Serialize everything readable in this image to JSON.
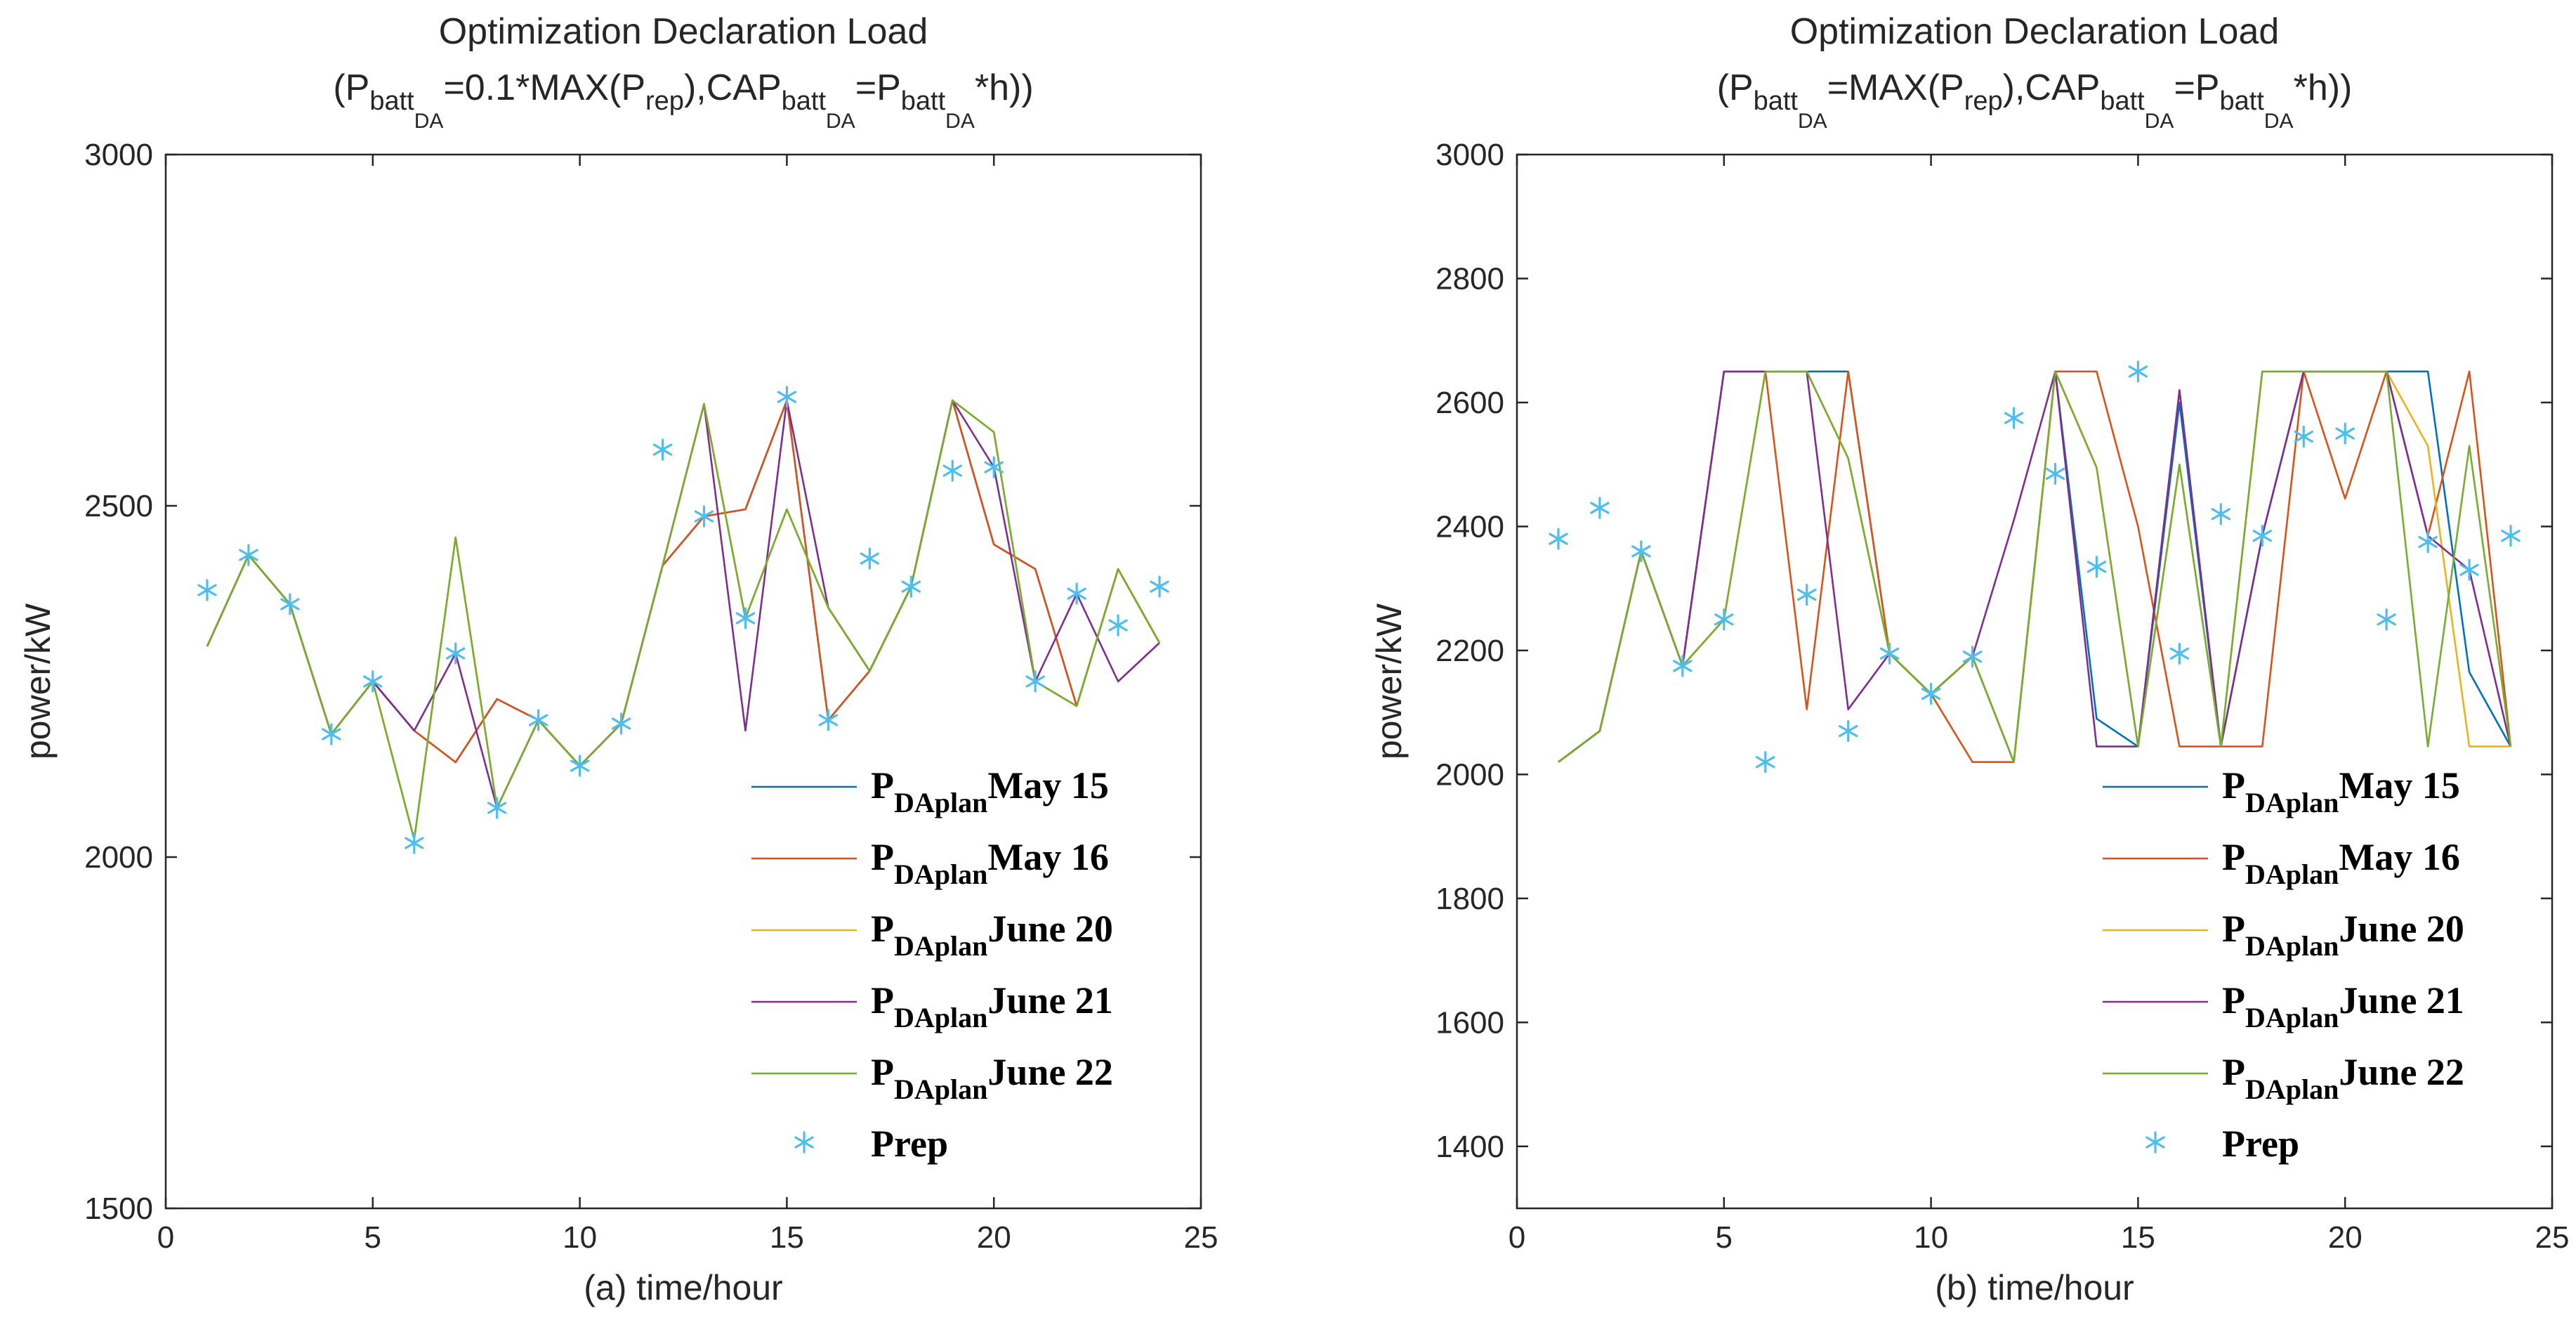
{
  "colors": {
    "may15": "#0072BD",
    "may16": "#D95319",
    "june20": "#EDB120",
    "june21": "#7E2F8E",
    "june22": "#77AC30",
    "prep": "#4DBEEE",
    "axis": "#262626"
  },
  "chart_data": [
    {
      "type": "line",
      "id": "a",
      "title_line1": "Optimization Declaration Load",
      "title_line2": {
        "open": "(P",
        "sub1": "batt",
        "subsub1": "DA",
        "mid1": "=0.1*MAX(P",
        "sub2": "rep",
        "mid2": "),CAP",
        "sub3": "batt",
        "subsub3": "DA",
        "mid3": "=P",
        "sub4": "batt",
        "subsub4": "DA",
        "close": "*h))"
      },
      "xlabel": "(a) time/hour",
      "ylabel": "power/kW",
      "xlim": [
        0,
        25
      ],
      "ylim": [
        1500,
        3000
      ],
      "xticks": [
        "0",
        "5",
        "10",
        "15",
        "20",
        "25"
      ],
      "xtick_values": [
        0,
        5,
        10,
        15,
        20,
        25
      ],
      "yticks": [
        "1500",
        "2000",
        "2500",
        "3000"
      ],
      "ytick_values": [
        1500,
        2000,
        2500,
        3000
      ],
      "x": [
        1,
        2,
        3,
        4,
        5,
        6,
        7,
        8,
        9,
        10,
        11,
        12,
        13,
        14,
        15,
        16,
        17,
        18,
        19,
        20,
        21,
        22,
        23,
        24
      ],
      "series": [
        {
          "key": "may15",
          "name_p": "P",
          "name_sub": "DAplan",
          "name_rest": "May 15",
          "values": [
            2300,
            2430,
            2360,
            2175,
            2250,
            2180,
            2135,
            2225,
            2195,
            2130,
            2190,
            2415,
            2485,
            2495,
            2650,
            2195,
            2265,
            2385,
            2650,
            2445,
            2410,
            2215,
            2410,
            2305
          ]
        },
        {
          "key": "may16",
          "name_p": "P",
          "name_sub": "DAplan",
          "name_rest": "May 16",
          "values": [
            2300,
            2430,
            2360,
            2175,
            2250,
            2180,
            2135,
            2225,
            2195,
            2130,
            2190,
            2415,
            2485,
            2495,
            2650,
            2195,
            2265,
            2385,
            2650,
            2445,
            2410,
            2215,
            2410,
            2305
          ]
        },
        {
          "key": "june20",
          "name_p": "P",
          "name_sub": "DAplan",
          "name_rest": "June 20",
          "values": [
            2300,
            2430,
            2360,
            2175,
            2250,
            2025,
            2455,
            2070,
            2195,
            2130,
            2190,
            2415,
            2645,
            2340,
            2495,
            2355,
            2265,
            2385,
            2650,
            2605,
            2250,
            2215,
            2410,
            2305
          ]
        },
        {
          "key": "june21",
          "name_p": "P",
          "name_sub": "DAplan",
          "name_rest": "June 21",
          "values": [
            2300,
            2430,
            2360,
            2175,
            2250,
            2180,
            2290,
            2070,
            2195,
            2130,
            2190,
            2415,
            2645,
            2180,
            2650,
            2355,
            2265,
            2385,
            2650,
            2555,
            2250,
            2375,
            2250,
            2305
          ]
        },
        {
          "key": "june22",
          "name_p": "P",
          "name_sub": "DAplan",
          "name_rest": "June 22",
          "values": [
            2300,
            2430,
            2360,
            2175,
            2250,
            2025,
            2455,
            2070,
            2195,
            2130,
            2190,
            2415,
            2645,
            2340,
            2495,
            2355,
            2265,
            2385,
            2650,
            2605,
            2250,
            2215,
            2410,
            2305
          ]
        }
      ],
      "prep": {
        "name": "Prep",
        "values": [
          2380,
          2430,
          2360,
          2175,
          2250,
          2020,
          2290,
          2070,
          2195,
          2130,
          2190,
          2580,
          2485,
          2340,
          2655,
          2195,
          2425,
          2385,
          2550,
          2555,
          2250,
          2375,
          2330,
          2385
        ]
      },
      "legend_location": "bottom-right"
    },
    {
      "type": "line",
      "id": "b",
      "title_line1": "Optimization Declaration Load",
      "title_line2": {
        "open": "(P",
        "sub1": "batt",
        "subsub1": "DA",
        "mid1": "=MAX(P",
        "sub2": "rep",
        "mid2": "),CAP",
        "sub3": "batt",
        "subsub3": "DA",
        "mid3": "=P",
        "sub4": "batt",
        "subsub4": "DA",
        "close": "*h))"
      },
      "xlabel": "(b) time/hour",
      "ylabel": "power/kW",
      "xlim": [
        0,
        25
      ],
      "ylim": [
        1300,
        3000
      ],
      "xticks": [
        "0",
        "5",
        "10",
        "15",
        "20",
        "25"
      ],
      "xtick_values": [
        0,
        5,
        10,
        15,
        20,
        25
      ],
      "yticks": [
        "1400",
        "1600",
        "1800",
        "2000",
        "2200",
        "2400",
        "2600",
        "2800",
        "3000"
      ],
      "ytick_values": [
        1400,
        1600,
        1800,
        2000,
        2200,
        2400,
        2600,
        2800,
        3000
      ],
      "x": [
        1,
        2,
        3,
        4,
        5,
        6,
        7,
        8,
        9,
        10,
        11,
        12,
        13,
        14,
        15,
        16,
        17,
        18,
        19,
        20,
        21,
        22,
        23,
        24
      ],
      "series": [
        {
          "key": "may15",
          "name_p": "P",
          "name_sub": "DAplan",
          "name_rest": "May 15",
          "values": [
            2020,
            2070,
            2360,
            2175,
            2650,
            2650,
            2650,
            2650,
            2195,
            2130,
            2190,
            2020,
            2650,
            2090,
            2045,
            2600,
            2045,
            2385,
            2650,
            2650,
            2650,
            2650,
            2165,
            2045
          ]
        },
        {
          "key": "may16",
          "name_p": "P",
          "name_sub": "DAplan",
          "name_rest": "May 16",
          "values": [
            2020,
            2070,
            2360,
            2175,
            2650,
            2650,
            2105,
            2650,
            2195,
            2130,
            2020,
            2020,
            2650,
            2650,
            2400,
            2045,
            2045,
            2045,
            2650,
            2445,
            2650,
            2385,
            2650,
            2045
          ]
        },
        {
          "key": "june20",
          "name_p": "P",
          "name_sub": "DAplan",
          "name_rest": "June 20",
          "values": [
            2020,
            2070,
            2360,
            2175,
            2250,
            2650,
            2650,
            2510,
            2195,
            2130,
            2190,
            2020,
            2650,
            2495,
            2045,
            2500,
            2045,
            2650,
            2650,
            2650,
            2650,
            2530,
            2045,
            2045
          ]
        },
        {
          "key": "june21",
          "name_p": "P",
          "name_sub": "DAplan",
          "name_rest": "June 21",
          "values": [
            2020,
            2070,
            2360,
            2175,
            2650,
            2650,
            2650,
            2105,
            2195,
            2130,
            2190,
            2410,
            2650,
            2045,
            2045,
            2620,
            2045,
            2385,
            2650,
            2650,
            2650,
            2385,
            2330,
            2045
          ]
        },
        {
          "key": "june22",
          "name_p": "P",
          "name_sub": "DAplan",
          "name_rest": "June 22",
          "values": [
            2020,
            2070,
            2360,
            2175,
            2250,
            2650,
            2650,
            2510,
            2195,
            2130,
            2190,
            2020,
            2650,
            2495,
            2045,
            2500,
            2045,
            2650,
            2650,
            2650,
            2650,
            2045,
            2530,
            2045
          ]
        }
      ],
      "prep": {
        "name": "Prep",
        "values": [
          2380,
          2430,
          2360,
          2175,
          2250,
          2020,
          2290,
          2070,
          2195,
          2130,
          2190,
          2575,
          2485,
          2335,
          2650,
          2195,
          2420,
          2385,
          2545,
          2550,
          2250,
          2375,
          2330,
          2385
        ]
      },
      "legend_location": "bottom-right"
    }
  ]
}
